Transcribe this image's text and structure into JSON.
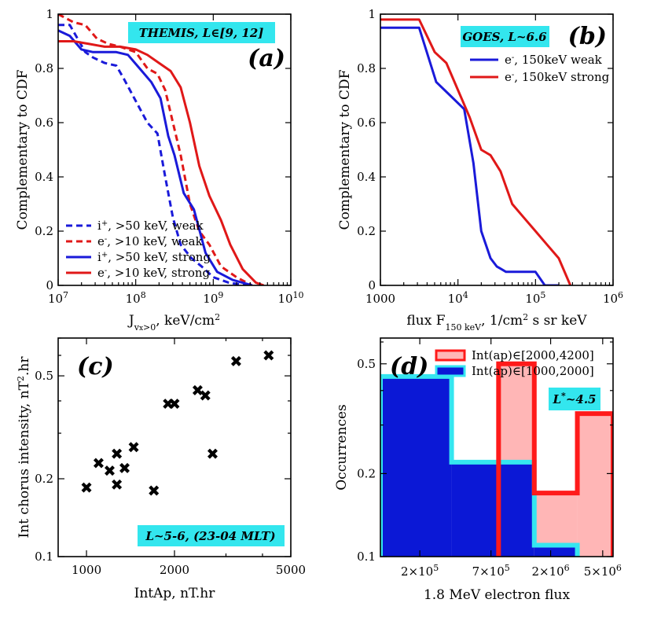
{
  "chart_data": [
    {
      "id": "a",
      "type": "line",
      "panel_label": "(a)",
      "tag": "THEMIS, L∈[9, 12]",
      "ylabel": "Complementary to CDF",
      "xlabel": "J_{vx>0},  keV/cm²",
      "xlabel_parts": [
        "J",
        "v",
        "x",
        ">0",
        ",  keV/cm",
        "2"
      ],
      "xscale": "log",
      "xlim_exp": [
        7,
        10
      ],
      "ylim": [
        0,
        1
      ],
      "x_ticks": [
        {
          "base": "10",
          "exp": "7"
        },
        {
          "base": "10",
          "exp": "8"
        },
        {
          "base": "10",
          "exp": "9"
        },
        {
          "base": "10",
          "exp": "10"
        }
      ],
      "y_ticks": [
        "0",
        "0.2",
        "0.4",
        "0.6",
        "0.8",
        "1"
      ],
      "y_tick_values": [
        0,
        0.2,
        0.4,
        0.6,
        0.8,
        1
      ],
      "series": [
        {
          "name": "i⁺, >50 keV, weak",
          "label_sym": "i",
          "label_sup": "+",
          "label_rest": ", >50 keV, weak",
          "color": "#1a1ad9",
          "dash": true,
          "x_exp": [
            7.0,
            7.15,
            7.35,
            7.45,
            7.6,
            7.75,
            7.85,
            8.0,
            8.15,
            8.28,
            8.38,
            8.48,
            8.58,
            8.72,
            8.85,
            9.0,
            9.2,
            9.42
          ],
          "y": [
            0.96,
            0.96,
            0.86,
            0.84,
            0.82,
            0.81,
            0.76,
            0.68,
            0.6,
            0.56,
            0.4,
            0.25,
            0.15,
            0.1,
            0.07,
            0.03,
            0.01,
            0.0
          ]
        },
        {
          "name": "e⁻, >10 keV, weak",
          "label_sym": "e",
          "label_sup": "-",
          "label_rest": ", >10 keV, weak",
          "color": "#e01818",
          "dash": true,
          "x_exp": [
            7.0,
            7.2,
            7.35,
            7.5,
            7.65,
            7.8,
            8.0,
            8.15,
            8.28,
            8.38,
            8.48,
            8.58,
            8.7,
            8.82,
            8.95,
            9.1,
            9.3,
            9.5
          ],
          "y": [
            1.0,
            0.97,
            0.96,
            0.91,
            0.89,
            0.88,
            0.86,
            0.8,
            0.78,
            0.72,
            0.6,
            0.48,
            0.3,
            0.2,
            0.15,
            0.07,
            0.03,
            0.0
          ]
        },
        {
          "name": "i⁺, >50 keV, strong",
          "label_sym": "i",
          "label_sup": "+",
          "label_rest": ", >50 keV, strong",
          "color": "#1a1ad9",
          "dash": false,
          "x_exp": [
            7.0,
            7.15,
            7.3,
            7.45,
            7.6,
            7.75,
            7.9,
            8.05,
            8.2,
            8.32,
            8.42,
            8.5,
            8.62,
            8.75,
            8.9,
            9.05,
            9.25,
            9.5
          ],
          "y": [
            0.94,
            0.92,
            0.87,
            0.86,
            0.86,
            0.86,
            0.85,
            0.8,
            0.75,
            0.69,
            0.55,
            0.48,
            0.34,
            0.28,
            0.12,
            0.05,
            0.02,
            0.0
          ]
        },
        {
          "name": "e⁻, >10 keV, strong",
          "label_sym": "e",
          "label_sup": "-",
          "label_rest": ", >10 keV, strong",
          "color": "#e01818",
          "dash": false,
          "x_exp": [
            7.0,
            7.2,
            7.4,
            7.6,
            7.8,
            8.0,
            8.15,
            8.3,
            8.45,
            8.58,
            8.7,
            8.82,
            8.95,
            9.1,
            9.22,
            9.38,
            9.55,
            9.65
          ],
          "y": [
            0.9,
            0.9,
            0.89,
            0.88,
            0.88,
            0.87,
            0.85,
            0.82,
            0.79,
            0.73,
            0.6,
            0.44,
            0.33,
            0.24,
            0.15,
            0.06,
            0.01,
            0.0
          ]
        }
      ]
    },
    {
      "id": "b",
      "type": "line",
      "panel_label": "(b)",
      "tag": "GOES, L~6.6",
      "ylabel": "Complementary to CDF",
      "xlabel": "flux F_{150 keV}, 1/cm² s sr keV",
      "xlabel_parts": [
        "flux F",
        "150 keV",
        ", 1/cm",
        "2",
        " s sr keV"
      ],
      "xscale": "log",
      "xlim_exp": [
        3,
        6
      ],
      "ylim": [
        0,
        1
      ],
      "x_ticks": [
        {
          "base": "1000",
          "exp": ""
        },
        {
          "base": "10",
          "exp": "4"
        },
        {
          "base": "10",
          "exp": "5"
        },
        {
          "base": "10",
          "exp": "6"
        }
      ],
      "y_ticks": [
        "0",
        "0.2",
        "0.4",
        "0.6",
        "0.8",
        "1"
      ],
      "y_tick_values": [
        0,
        0.2,
        0.4,
        0.6,
        0.8,
        1
      ],
      "series": [
        {
          "name": "e⁻, 150keV weak",
          "label_sym": "e",
          "label_sup": "-",
          "label_rest": ", 150keV weak",
          "color": "#1a1ad9",
          "dash": false,
          "x_exp": [
            3.0,
            3.3,
            3.5,
            3.72,
            3.9,
            4.08,
            4.2,
            4.3,
            4.42,
            4.5,
            4.62,
            4.75,
            4.88,
            5.0,
            5.12,
            5.3
          ],
          "y": [
            0.95,
            0.95,
            0.95,
            0.75,
            0.7,
            0.65,
            0.45,
            0.2,
            0.1,
            0.07,
            0.05,
            0.05,
            0.05,
            0.05,
            0.0,
            0.0
          ]
        },
        {
          "name": "e⁻, 150keV strong",
          "label_sym": "e",
          "label_sup": "-",
          "label_rest": ", 150keV strong",
          "color": "#e01818",
          "dash": false,
          "x_exp": [
            3.0,
            3.25,
            3.5,
            3.7,
            3.85,
            4.0,
            4.15,
            4.3,
            4.42,
            4.55,
            4.7,
            4.85,
            5.0,
            5.15,
            5.3,
            5.45
          ],
          "y": [
            0.98,
            0.98,
            0.98,
            0.86,
            0.82,
            0.72,
            0.62,
            0.5,
            0.48,
            0.42,
            0.3,
            0.25,
            0.2,
            0.15,
            0.1,
            0.0
          ]
        }
      ]
    },
    {
      "id": "c",
      "type": "scatter",
      "panel_label": "(c)",
      "tag": "L~5-6, (23-04 MLT)",
      "ylabel": "Int chorus intensity, nT².hr",
      "ylabel_parts": [
        "Int chorus intensity, nT",
        "2",
        ".hr"
      ],
      "xlabel": "IntAp, nT.hr",
      "xscale": "log",
      "yscale": "log",
      "xlim": [
        800,
        5000
      ],
      "ylim": [
        0.1,
        0.7
      ],
      "x_ticks": [
        "1000",
        "2000",
        "5000"
      ],
      "x_tick_values": [
        1000,
        2000,
        5000
      ],
      "y_ticks": [
        "0.1",
        "0.2",
        "0.5"
      ],
      "y_tick_values": [
        0.1,
        0.2,
        0.5
      ],
      "marker": "x",
      "x": [
        1000,
        1100,
        1200,
        1270,
        1270,
        1350,
        1450,
        1700,
        1900,
        2000,
        2400,
        2550,
        2700,
        3250,
        4200
      ],
      "y": [
        0.185,
        0.23,
        0.215,
        0.25,
        0.19,
        0.22,
        0.265,
        0.18,
        0.39,
        0.39,
        0.44,
        0.42,
        0.25,
        0.57,
        0.6
      ]
    },
    {
      "id": "d",
      "type": "step",
      "panel_label": "(d)",
      "tag": "L∗~4.5",
      "tag_parts": [
        "L",
        "*",
        "~4.5"
      ],
      "ylabel": "Occurrences",
      "xlabel": "1.8 MeV electron flux",
      "xscale": "log",
      "yscale": "log",
      "xlim": [
        100000,
        6000000
      ],
      "ylim": [
        0.1,
        0.62
      ],
      "x_ticks": [
        {
          "base": "2×10",
          "exp": "5"
        },
        {
          "base": "7×10",
          "exp": "5"
        },
        {
          "base": "2×10",
          "exp": "6"
        },
        {
          "base": "5×10",
          "exp": "6"
        }
      ],
      "x_tick_values": [
        200000,
        700000,
        2000000,
        5000000
      ],
      "y_ticks": [
        "0.1",
        "0.2",
        "0.5"
      ],
      "y_tick_values": [
        0.1,
        0.2,
        0.5
      ],
      "series": [
        {
          "name": "Int(ap)∈[2000,4200]",
          "edge": "#ff1a1a",
          "fill": "#ffb6b6",
          "edges": [
            800000,
            1500000,
            3200000,
            6000000
          ],
          "values": [
            0.5,
            0.17,
            0.33
          ]
        },
        {
          "name": "Int(ap)∈[1000,2000]",
          "edge": "#35e6f0",
          "fill": "#0b18d6",
          "edges": [
            100000,
            350000,
            1500000,
            3200000
          ],
          "values": [
            0.45,
            0.22,
            0.11
          ]
        }
      ],
      "overlap_color": "#4a1aa0"
    }
  ]
}
